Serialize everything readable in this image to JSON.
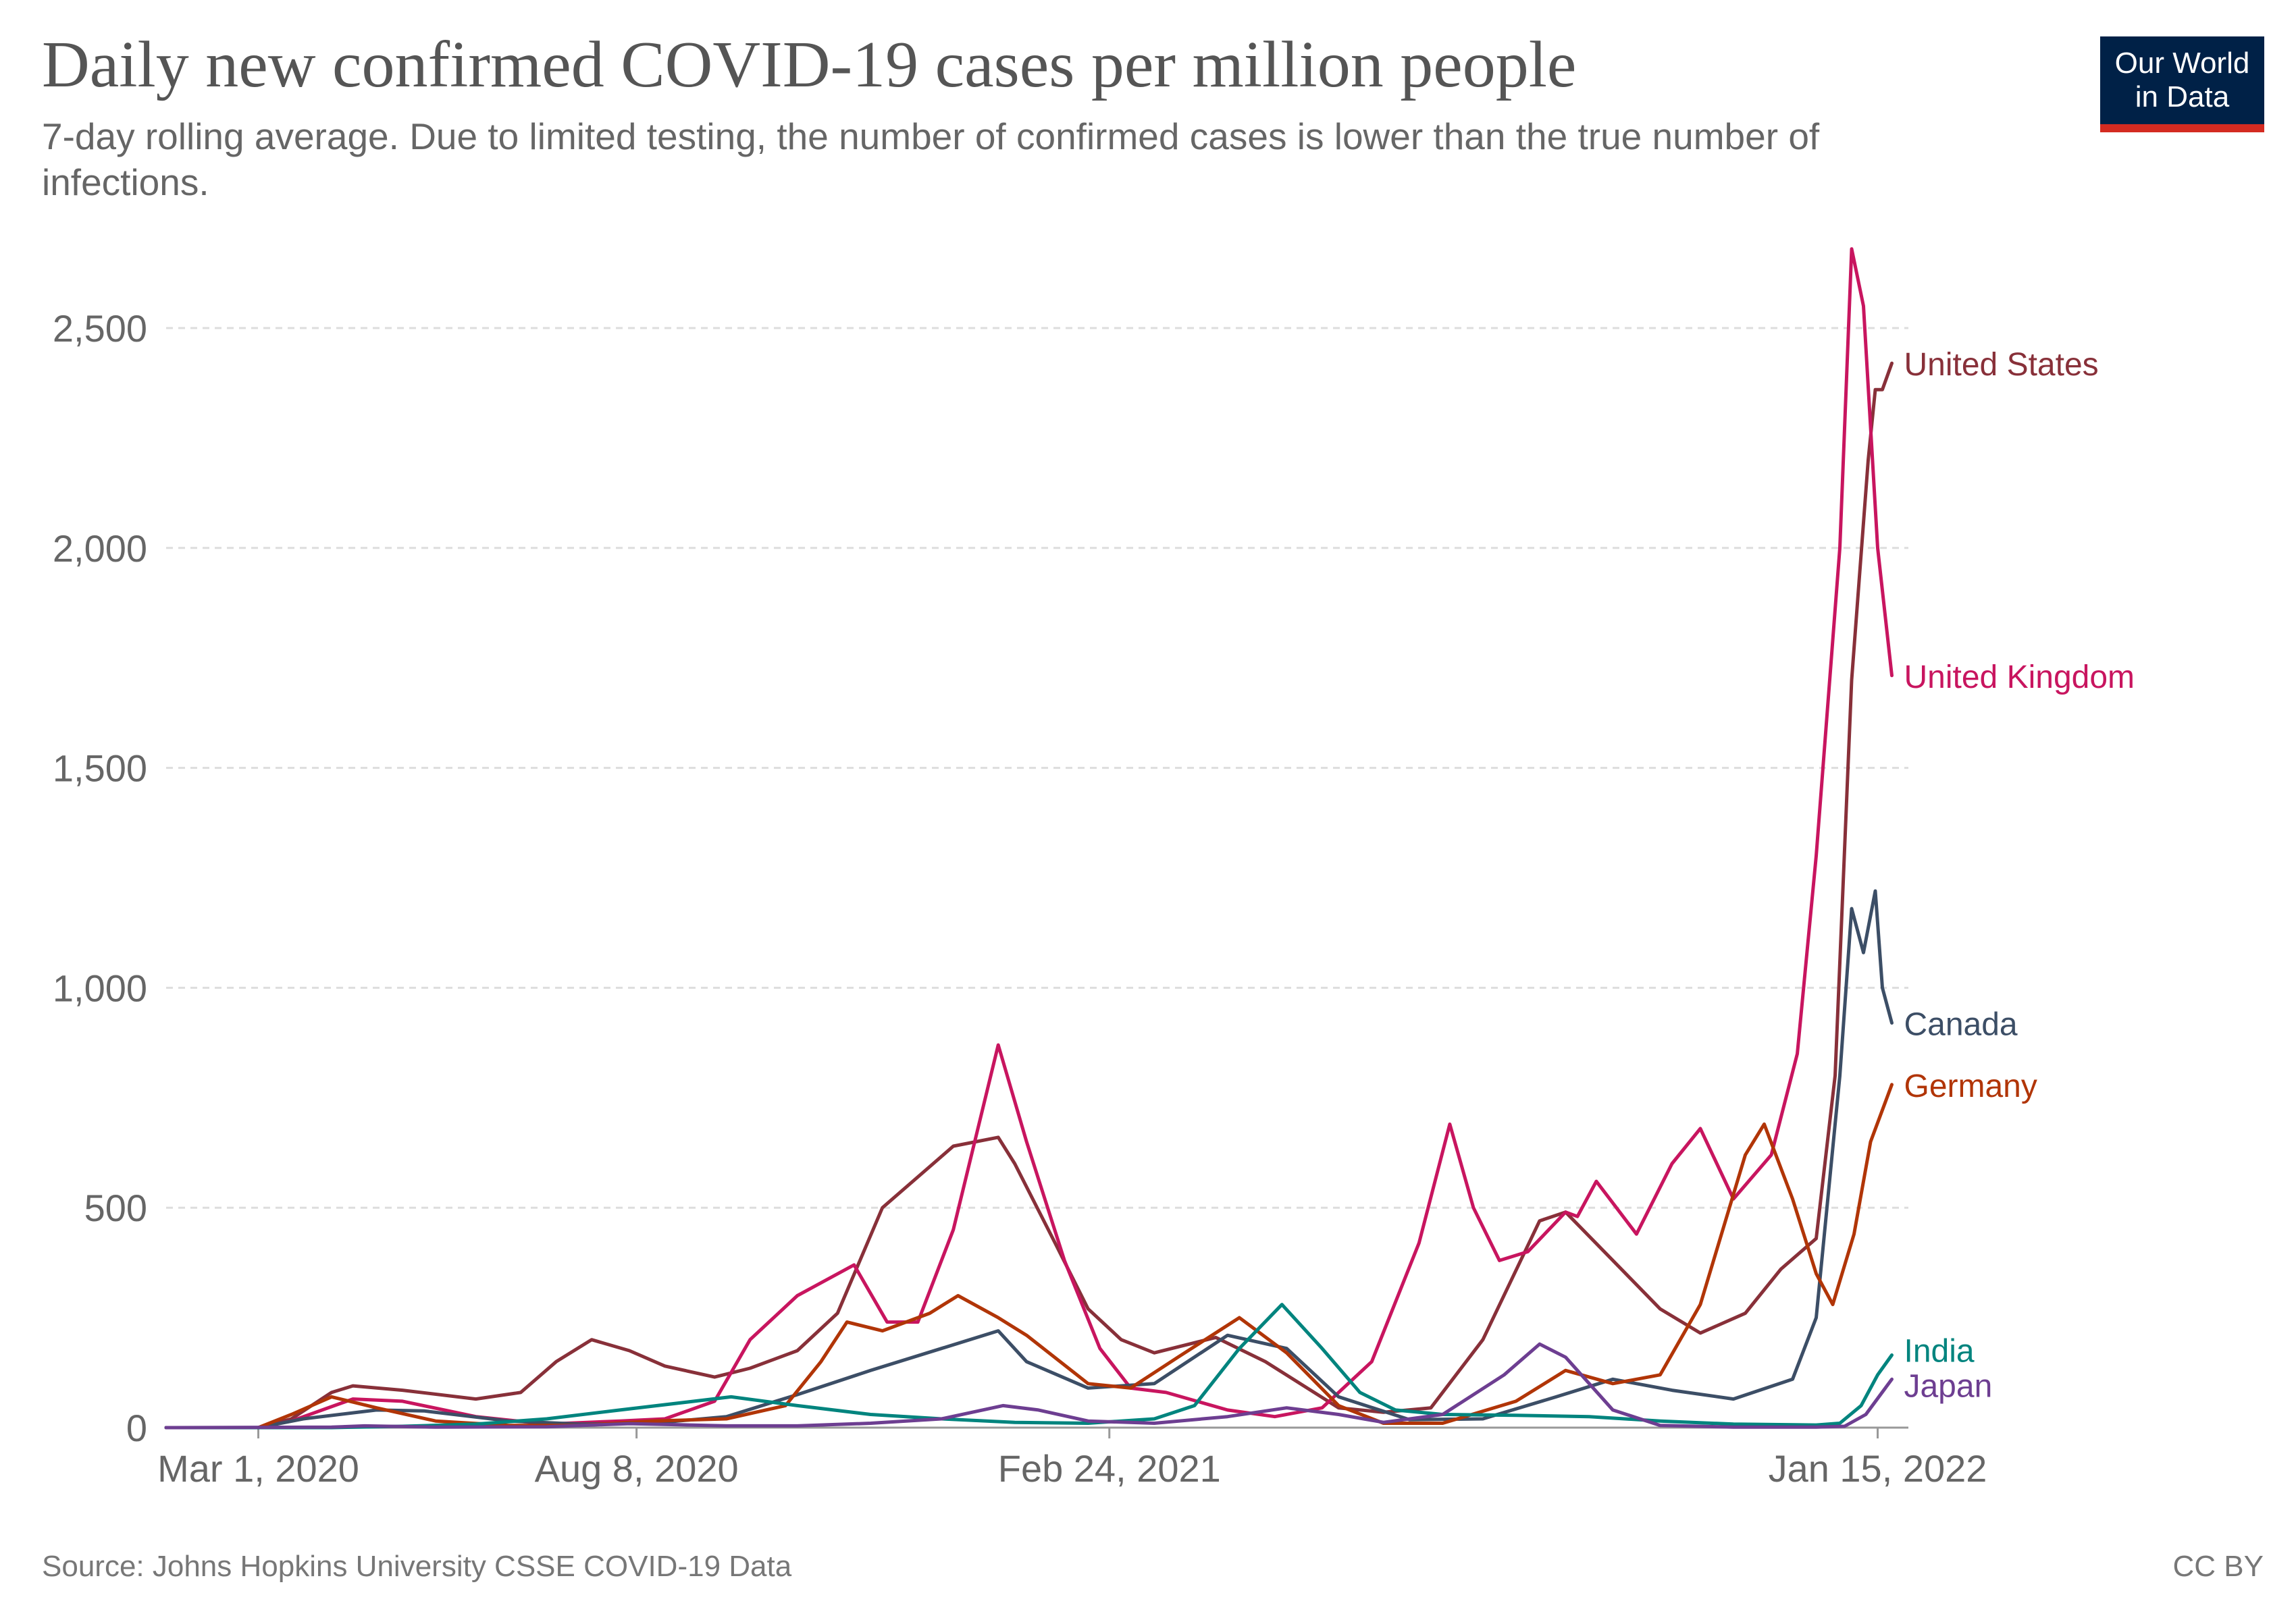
{
  "header": {
    "title": "Daily new confirmed COVID-19 cases per million people",
    "subtitle": "7-day rolling average. Due to limited testing, the number of confirmed cases is lower than the true number of infections."
  },
  "logo": {
    "line1": "Our World",
    "line2": "in Data",
    "bg_color": "#002147",
    "accent_color": "#d42b21"
  },
  "footer": {
    "source": "Source: Johns Hopkins University CSSE COVID-19 Data",
    "license": "CC BY"
  },
  "chart_data": {
    "type": "line",
    "title": "Daily new confirmed COVID-19 cases per million people",
    "subtitle": "7-day rolling average. Due to limited testing, the number of confirmed cases is lower than the true number of infections.",
    "xlabel": "",
    "ylabel": "",
    "x_type": "date",
    "xlim": [
      "2020-01-22",
      "2022-01-28"
    ],
    "ylim": [
      0,
      2700
    ],
    "y_ticks": [
      0,
      500,
      1000,
      1500,
      2000,
      2500
    ],
    "y_tick_labels": [
      "0",
      "500",
      "1,000",
      "1,500",
      "2,000",
      "2,500"
    ],
    "x_ticks": [
      "2020-03-01",
      "2020-08-08",
      "2021-02-24",
      "2022-01-15"
    ],
    "x_tick_labels": [
      "Mar 1, 2020",
      "Aug 8, 2020",
      "Feb 24, 2021",
      "Jan 15, 2022"
    ],
    "grid": "horizontal dashed",
    "legend": "inline labels at right end of lines",
    "series": [
      {
        "name": "United States",
        "color": "#883039",
        "points": [
          [
            "2020-01-22",
            0
          ],
          [
            "2020-03-01",
            0
          ],
          [
            "2020-03-15",
            20
          ],
          [
            "2020-04-01",
            80
          ],
          [
            "2020-04-10",
            95
          ],
          [
            "2020-05-01",
            85
          ],
          [
            "2020-06-01",
            65
          ],
          [
            "2020-06-20",
            80
          ],
          [
            "2020-07-05",
            150
          ],
          [
            "2020-07-20",
            200
          ],
          [
            "2020-08-05",
            175
          ],
          [
            "2020-08-20",
            140
          ],
          [
            "2020-09-10",
            115
          ],
          [
            "2020-09-25",
            135
          ],
          [
            "2020-10-15",
            175
          ],
          [
            "2020-11-01",
            260
          ],
          [
            "2020-11-20",
            500
          ],
          [
            "2020-12-05",
            570
          ],
          [
            "2020-12-20",
            640
          ],
          [
            "2021-01-08",
            660
          ],
          [
            "2021-01-15",
            600
          ],
          [
            "2021-02-01",
            420
          ],
          [
            "2021-02-15",
            270
          ],
          [
            "2021-03-01",
            200
          ],
          [
            "2021-03-15",
            170
          ],
          [
            "2021-04-10",
            205
          ],
          [
            "2021-05-01",
            150
          ],
          [
            "2021-06-01",
            45
          ],
          [
            "2021-06-20",
            35
          ],
          [
            "2021-07-10",
            45
          ],
          [
            "2021-08-01",
            200
          ],
          [
            "2021-08-25",
            470
          ],
          [
            "2021-09-05",
            490
          ],
          [
            "2021-09-25",
            380
          ],
          [
            "2021-10-15",
            270
          ],
          [
            "2021-11-01",
            215
          ],
          [
            "2021-11-20",
            260
          ],
          [
            "2021-12-05",
            360
          ],
          [
            "2021-12-20",
            430
          ],
          [
            "2021-12-28",
            800
          ],
          [
            "2022-01-04",
            1700
          ],
          [
            "2022-01-11",
            2200
          ],
          [
            "2022-01-14",
            2360
          ],
          [
            "2022-01-17",
            2360
          ],
          [
            "2022-01-21",
            2420
          ]
        ]
      },
      {
        "name": "United Kingdom",
        "color": "#c8155f",
        "points": [
          [
            "2020-01-22",
            0
          ],
          [
            "2020-03-01",
            0
          ],
          [
            "2020-03-15",
            15
          ],
          [
            "2020-04-10",
            65
          ],
          [
            "2020-05-01",
            60
          ],
          [
            "2020-06-01",
            25
          ],
          [
            "2020-07-01",
            8
          ],
          [
            "2020-08-01",
            15
          ],
          [
            "2020-08-20",
            20
          ],
          [
            "2020-09-10",
            60
          ],
          [
            "2020-09-25",
            200
          ],
          [
            "2020-10-15",
            300
          ],
          [
            "2020-11-08",
            370
          ],
          [
            "2020-11-22",
            240
          ],
          [
            "2020-12-05",
            240
          ],
          [
            "2020-12-20",
            450
          ],
          [
            "2021-01-08",
            870
          ],
          [
            "2021-01-20",
            650
          ],
          [
            "2021-02-05",
            380
          ],
          [
            "2021-02-20",
            180
          ],
          [
            "2021-03-05",
            90
          ],
          [
            "2021-03-20",
            80
          ],
          [
            "2021-04-15",
            40
          ],
          [
            "2021-05-05",
            25
          ],
          [
            "2021-05-25",
            45
          ],
          [
            "2021-06-15",
            150
          ],
          [
            "2021-07-05",
            420
          ],
          [
            "2021-07-18",
            690
          ],
          [
            "2021-07-28",
            500
          ],
          [
            "2021-08-08",
            380
          ],
          [
            "2021-08-20",
            400
          ],
          [
            "2021-09-05",
            490
          ],
          [
            "2021-09-10",
            480
          ],
          [
            "2021-09-18",
            560
          ],
          [
            "2021-10-05",
            440
          ],
          [
            "2021-10-20",
            600
          ],
          [
            "2021-11-01",
            680
          ],
          [
            "2021-11-15",
            520
          ],
          [
            "2021-12-01",
            620
          ],
          [
            "2021-12-12",
            850
          ],
          [
            "2021-12-20",
            1300
          ],
          [
            "2021-12-30",
            2000
          ],
          [
            "2022-01-04",
            2680
          ],
          [
            "2022-01-09",
            2550
          ],
          [
            "2022-01-15",
            2000
          ],
          [
            "2022-01-21",
            1710
          ]
        ]
      },
      {
        "name": "Canada",
        "color": "#3c4e66",
        "points": [
          [
            "2020-01-22",
            0
          ],
          [
            "2020-03-01",
            0
          ],
          [
            "2020-03-20",
            20
          ],
          [
            "2020-04-20",
            40
          ],
          [
            "2020-05-10",
            38
          ],
          [
            "2020-06-15",
            15
          ],
          [
            "2020-07-15",
            8
          ],
          [
            "2020-08-15",
            10
          ],
          [
            "2020-09-15",
            25
          ],
          [
            "2020-10-15",
            75
          ],
          [
            "2020-11-15",
            130
          ],
          [
            "2020-12-15",
            180
          ],
          [
            "2021-01-08",
            220
          ],
          [
            "2021-01-20",
            150
          ],
          [
            "2021-02-15",
            90
          ],
          [
            "2021-03-15",
            100
          ],
          [
            "2021-04-15",
            210
          ],
          [
            "2021-05-10",
            180
          ],
          [
            "2021-06-01",
            70
          ],
          [
            "2021-07-01",
            18
          ],
          [
            "2021-08-01",
            20
          ],
          [
            "2021-09-01",
            70
          ],
          [
            "2021-09-25",
            110
          ],
          [
            "2021-10-20",
            85
          ],
          [
            "2021-11-15",
            65
          ],
          [
            "2021-12-10",
            110
          ],
          [
            "2021-12-20",
            250
          ],
          [
            "2021-12-30",
            800
          ],
          [
            "2022-01-04",
            1180
          ],
          [
            "2022-01-09",
            1080
          ],
          [
            "2022-01-14",
            1220
          ],
          [
            "2022-01-17",
            1000
          ],
          [
            "2022-01-21",
            920
          ]
        ]
      },
      {
        "name": "Germany",
        "color": "#b13507",
        "points": [
          [
            "2020-01-22",
            0
          ],
          [
            "2020-03-01",
            0
          ],
          [
            "2020-03-15",
            30
          ],
          [
            "2020-04-01",
            70
          ],
          [
            "2020-04-20",
            45
          ],
          [
            "2020-05-15",
            15
          ],
          [
            "2020-06-15",
            5
          ],
          [
            "2020-07-15",
            5
          ],
          [
            "2020-08-15",
            15
          ],
          [
            "2020-09-15",
            20
          ],
          [
            "2020-10-10",
            50
          ],
          [
            "2020-10-25",
            150
          ],
          [
            "2020-11-05",
            240
          ],
          [
            "2020-11-20",
            220
          ],
          [
            "2020-12-10",
            260
          ],
          [
            "2020-12-22",
            300
          ],
          [
            "2021-01-08",
            250
          ],
          [
            "2021-01-20",
            210
          ],
          [
            "2021-02-15",
            100
          ],
          [
            "2021-03-05",
            90
          ],
          [
            "2021-03-25",
            160
          ],
          [
            "2021-04-20",
            250
          ],
          [
            "2021-05-10",
            170
          ],
          [
            "2021-06-01",
            50
          ],
          [
            "2021-06-20",
            10
          ],
          [
            "2021-07-15",
            10
          ],
          [
            "2021-08-15",
            60
          ],
          [
            "2021-09-05",
            130
          ],
          [
            "2021-09-25",
            100
          ],
          [
            "2021-10-15",
            120
          ],
          [
            "2021-11-01",
            280
          ],
          [
            "2021-11-20",
            620
          ],
          [
            "2021-11-28",
            690
          ],
          [
            "2021-12-10",
            520
          ],
          [
            "2021-12-20",
            350
          ],
          [
            "2021-12-27",
            280
          ],
          [
            "2022-01-05",
            440
          ],
          [
            "2022-01-12",
            650
          ],
          [
            "2022-01-21",
            780
          ]
        ]
      },
      {
        "name": "India",
        "color": "#00847e",
        "points": [
          [
            "2020-01-22",
            0
          ],
          [
            "2020-04-01",
            0
          ],
          [
            "2020-05-01",
            3
          ],
          [
            "2020-06-01",
            8
          ],
          [
            "2020-07-01",
            20
          ],
          [
            "2020-08-01",
            40
          ],
          [
            "2020-09-17",
            70
          ],
          [
            "2020-10-15",
            50
          ],
          [
            "2020-11-15",
            30
          ],
          [
            "2020-12-15",
            20
          ],
          [
            "2021-01-15",
            12
          ],
          [
            "2021-02-15",
            10
          ],
          [
            "2021-03-15",
            20
          ],
          [
            "2021-04-01",
            50
          ],
          [
            "2021-04-20",
            180
          ],
          [
            "2021-05-08",
            280
          ],
          [
            "2021-05-25",
            180
          ],
          [
            "2021-06-10",
            80
          ],
          [
            "2021-06-25",
            40
          ],
          [
            "2021-07-15",
            30
          ],
          [
            "2021-08-15",
            28
          ],
          [
            "2021-09-15",
            25
          ],
          [
            "2021-10-15",
            15
          ],
          [
            "2021-11-15",
            8
          ],
          [
            "2021-12-20",
            6
          ],
          [
            "2021-12-30",
            10
          ],
          [
            "2022-01-08",
            50
          ],
          [
            "2022-01-15",
            120
          ],
          [
            "2022-01-21",
            165
          ]
        ]
      },
      {
        "name": "Japan",
        "color": "#6d3e91",
        "points": [
          [
            "2020-01-22",
            0
          ],
          [
            "2020-04-01",
            1
          ],
          [
            "2020-04-15",
            4
          ],
          [
            "2020-05-15",
            1
          ],
          [
            "2020-07-01",
            2
          ],
          [
            "2020-08-05",
            9
          ],
          [
            "2020-09-15",
            4
          ],
          [
            "2020-10-15",
            4
          ],
          [
            "2020-11-15",
            10
          ],
          [
            "2020-12-15",
            20
          ],
          [
            "2021-01-10",
            50
          ],
          [
            "2021-01-25",
            40
          ],
          [
            "2021-02-15",
            15
          ],
          [
            "2021-03-15",
            10
          ],
          [
            "2021-04-15",
            25
          ],
          [
            "2021-05-10",
            45
          ],
          [
            "2021-06-01",
            30
          ],
          [
            "2021-06-20",
            12
          ],
          [
            "2021-07-15",
            30
          ],
          [
            "2021-08-10",
            120
          ],
          [
            "2021-08-25",
            190
          ],
          [
            "2021-09-05",
            160
          ],
          [
            "2021-09-25",
            40
          ],
          [
            "2021-10-15",
            5
          ],
          [
            "2021-11-15",
            1
          ],
          [
            "2021-12-20",
            1
          ],
          [
            "2022-01-01",
            3
          ],
          [
            "2022-01-10",
            30
          ],
          [
            "2022-01-21",
            110
          ]
        ]
      }
    ]
  }
}
